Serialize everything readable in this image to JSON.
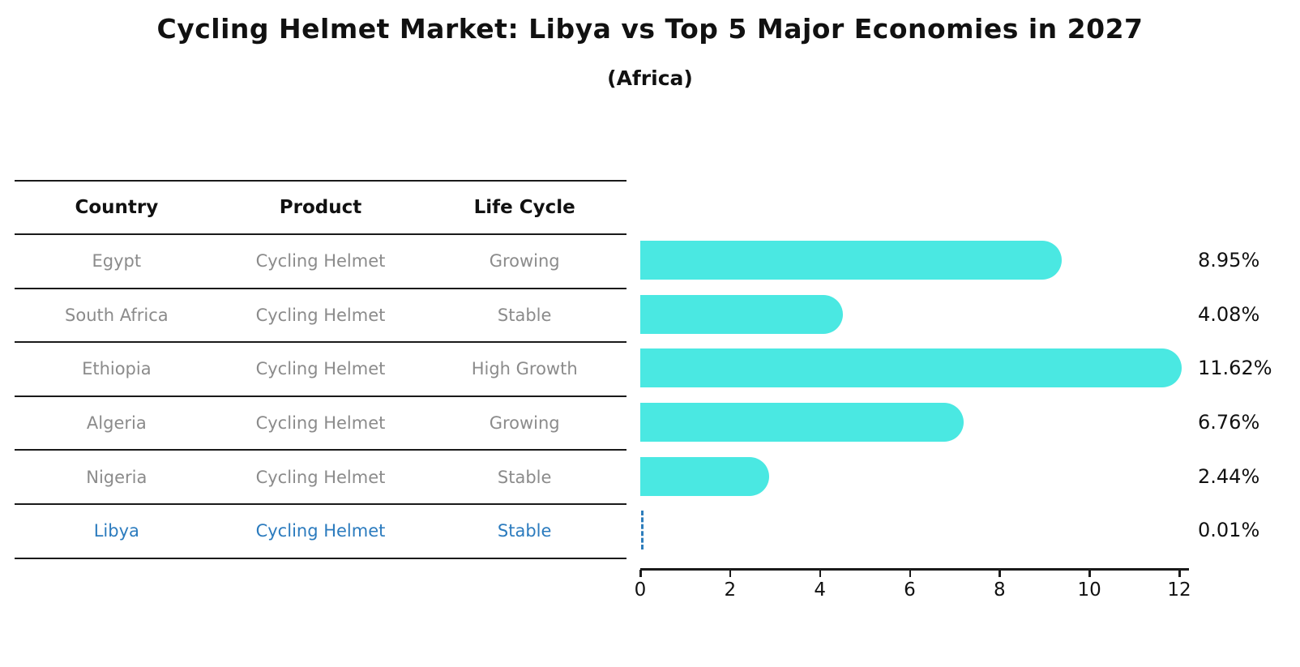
{
  "title": "Cycling Helmet Market: Libya vs Top 5 Major Economies in 2027",
  "subtitle": "(Africa)",
  "table": {
    "headers": {
      "country": "Country",
      "product": "Product",
      "life_cycle": "Life Cycle"
    },
    "rows": [
      {
        "country": "Egypt",
        "product": "Cycling Helmet",
        "life_cycle": "Growing",
        "highlight": false
      },
      {
        "country": "South Africa",
        "product": "Cycling Helmet",
        "life_cycle": "Stable",
        "highlight": false
      },
      {
        "country": "Ethiopia",
        "product": "Cycling Helmet",
        "life_cycle": "High Growth",
        "highlight": false
      },
      {
        "country": "Algeria",
        "product": "Cycling Helmet",
        "life_cycle": "Growing",
        "highlight": false
      },
      {
        "country": "Nigeria",
        "product": "Cycling Helmet",
        "life_cycle": "Stable",
        "highlight": false
      },
      {
        "country": "Libya",
        "product": "Cycling Helmet",
        "life_cycle": "Stable",
        "highlight": true
      }
    ]
  },
  "chart_data": {
    "type": "bar",
    "orientation": "horizontal",
    "title": "Cycling Helmet Market: Libya vs Top 5 Major Economies in 2027",
    "subtitle": "(Africa)",
    "categories": [
      "Egypt",
      "South Africa",
      "Ethiopia",
      "Algeria",
      "Nigeria",
      "Libya"
    ],
    "values": [
      8.95,
      4.08,
      11.62,
      6.76,
      2.44,
      0.01
    ],
    "labels": [
      "8.95%",
      "4.08%",
      "11.62%",
      "6.76%",
      "2.44%",
      "0.01%"
    ],
    "xlim": [
      0,
      12
    ],
    "xticks": [
      0,
      2,
      4,
      6,
      8,
      10,
      12
    ],
    "grid": false,
    "legend": "none",
    "bar_color": "#4ae8e2",
    "highlight_index": 5,
    "highlight_color": "#2e7ebc",
    "value_unit": "%"
  },
  "colors": {
    "bar": "#4ae8e2",
    "highlight_text": "#2b7bbe",
    "muted_text": "#8b8b8b",
    "line": "#1a1a1a"
  }
}
